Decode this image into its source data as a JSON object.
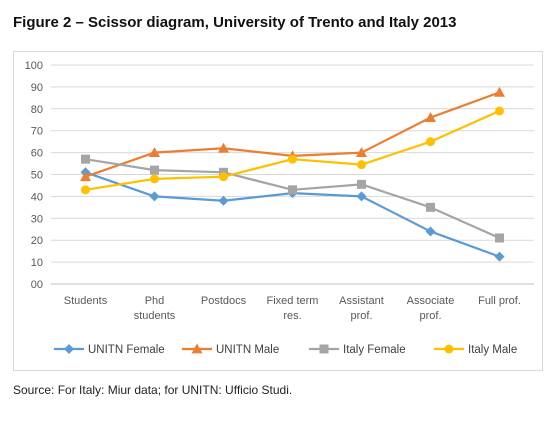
{
  "header": {
    "title": "Figure 2 – Scissor diagram, University of Trento and Italy 2013"
  },
  "footer": {
    "source": "Source: For Italy:  Miur data; for UNITN: Ufficio Studi."
  },
  "chart_data": {
    "type": "line",
    "title": "",
    "xlabel": "",
    "ylabel": "",
    "ylim": [
      0,
      100
    ],
    "yticks": [
      "00",
      "10",
      "20",
      "30",
      "40",
      "50",
      "60",
      "70",
      "80",
      "90",
      "100"
    ],
    "grid": true,
    "legend_position": "bottom",
    "categories": [
      [
        "Students"
      ],
      [
        "Phd",
        "students"
      ],
      [
        "Postdocs"
      ],
      [
        "Fixed term",
        "res."
      ],
      [
        "Assistant",
        "prof."
      ],
      [
        "Associate",
        "prof."
      ],
      [
        "Full prof."
      ]
    ],
    "series": [
      {
        "name": "UNITN Female",
        "color": "#5b9bd5",
        "marker": "diamond",
        "values": [
          51,
          40,
          38,
          41.5,
          40,
          24,
          12.5
        ]
      },
      {
        "name": "UNITN Male",
        "color": "#ed7d31",
        "marker": "triangle",
        "values": [
          49,
          60,
          62,
          58.5,
          60,
          76,
          87.5
        ]
      },
      {
        "name": "Italy Female",
        "color": "#a5a5a5",
        "marker": "square",
        "values": [
          57,
          52,
          51,
          43,
          45.5,
          35,
          21
        ]
      },
      {
        "name": "Italy Male",
        "color": "#ffc000",
        "marker": "circle",
        "values": [
          43,
          48,
          49,
          57,
          54.5,
          65,
          79
        ]
      }
    ]
  }
}
